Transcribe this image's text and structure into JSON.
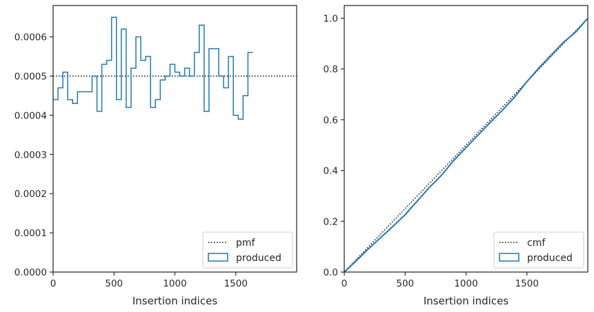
{
  "chart_data": [
    {
      "type": "histogram-step",
      "xlabel": "Insertion indices",
      "ylabel": "",
      "xlim": [
        0,
        2000
      ],
      "ylim": [
        0,
        0.00068
      ],
      "xticks": [
        0,
        500,
        1000,
        1500
      ],
      "xtick_labels": [
        "0",
        "500",
        "1000",
        "1500"
      ],
      "yticks": [
        0,
        0.0001,
        0.0002,
        0.0003,
        0.0004,
        0.0005,
        0.0006
      ],
      "ytick_labels": [
        "0.0000",
        "0.0001",
        "0.0002",
        "0.0003",
        "0.0004",
        "0.0005",
        "0.0006"
      ],
      "grid": false,
      "legend_position": "bottom-right",
      "bin_width": 40,
      "series": [
        {
          "name": "pmf",
          "style": "dotted",
          "color": "#000000",
          "x": [
            0,
            2000
          ],
          "y": [
            0.0005,
            0.0005
          ]
        },
        {
          "name": "produced",
          "style": "step",
          "color": "#1f77b4",
          "values": [
            0.00044,
            0.00047,
            0.00051,
            0.00044,
            0.00043,
            0.00046,
            0.00046,
            0.00046,
            0.0005,
            0.00041,
            0.00053,
            0.00054,
            0.00065,
            0.00044,
            0.00062,
            0.00042,
            0.00052,
            0.0006,
            0.00054,
            0.00055,
            0.00042,
            0.00044,
            0.00049,
            0.0005,
            0.00053,
            0.00051,
            0.0005,
            0.00052,
            0.0005,
            0.00056,
            0.00063,
            0.00041,
            0.00057,
            0.00057,
            0.0005,
            0.00047,
            0.00055,
            0.0004,
            0.00039,
            0.00045,
            0.00056
          ]
        }
      ]
    },
    {
      "type": "line",
      "xlabel": "Insertion indices",
      "ylabel": "",
      "xlim": [
        0,
        2000
      ],
      "ylim": [
        0,
        1.05
      ],
      "xticks": [
        0,
        500,
        1000,
        1500
      ],
      "xtick_labels": [
        "0",
        "500",
        "1000",
        "1500"
      ],
      "yticks": [
        0,
        0.2,
        0.4,
        0.6,
        0.8,
        1.0
      ],
      "ytick_labels": [
        "0.0",
        "0.2",
        "0.4",
        "0.6",
        "0.8",
        "1.0"
      ],
      "grid": false,
      "legend_position": "bottom-right",
      "series": [
        {
          "name": "cmf",
          "style": "dotted",
          "color": "#000000",
          "x": [
            0,
            2000
          ],
          "y": [
            0,
            1.0
          ]
        },
        {
          "name": "produced",
          "style": "step",
          "color": "#1f77b4",
          "x": [
            0,
            100,
            200,
            300,
            400,
            500,
            600,
            700,
            800,
            900,
            1000,
            1100,
            1200,
            1300,
            1400,
            1500,
            1600,
            1700,
            1800,
            1900,
            2000
          ],
          "y": [
            0,
            0.045,
            0.092,
            0.136,
            0.18,
            0.226,
            0.28,
            0.334,
            0.382,
            0.44,
            0.49,
            0.54,
            0.59,
            0.638,
            0.69,
            0.75,
            0.805,
            0.855,
            0.905,
            0.945,
            1.0
          ]
        }
      ]
    }
  ]
}
